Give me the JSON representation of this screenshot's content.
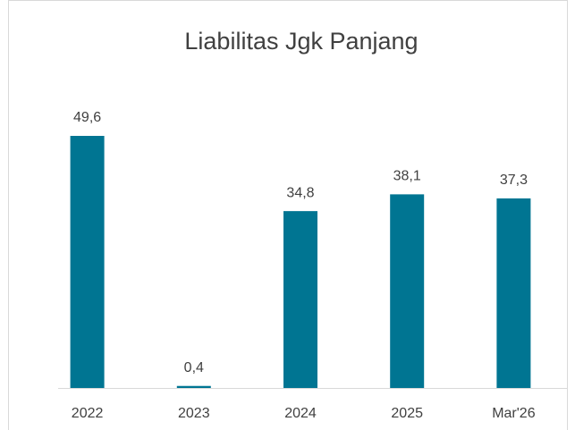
{
  "chart_data": {
    "type": "bar",
    "title": "Liabilitas Jgk Panjang",
    "categories": [
      "2022",
      "2023",
      "2024",
      "2025",
      "Mar'26"
    ],
    "values": [
      49.6,
      0.4,
      34.8,
      38.1,
      37.3
    ],
    "value_labels": [
      "49,6",
      "0,4",
      "34,8",
      "38,1",
      "37,3"
    ],
    "color": "#007592"
  }
}
